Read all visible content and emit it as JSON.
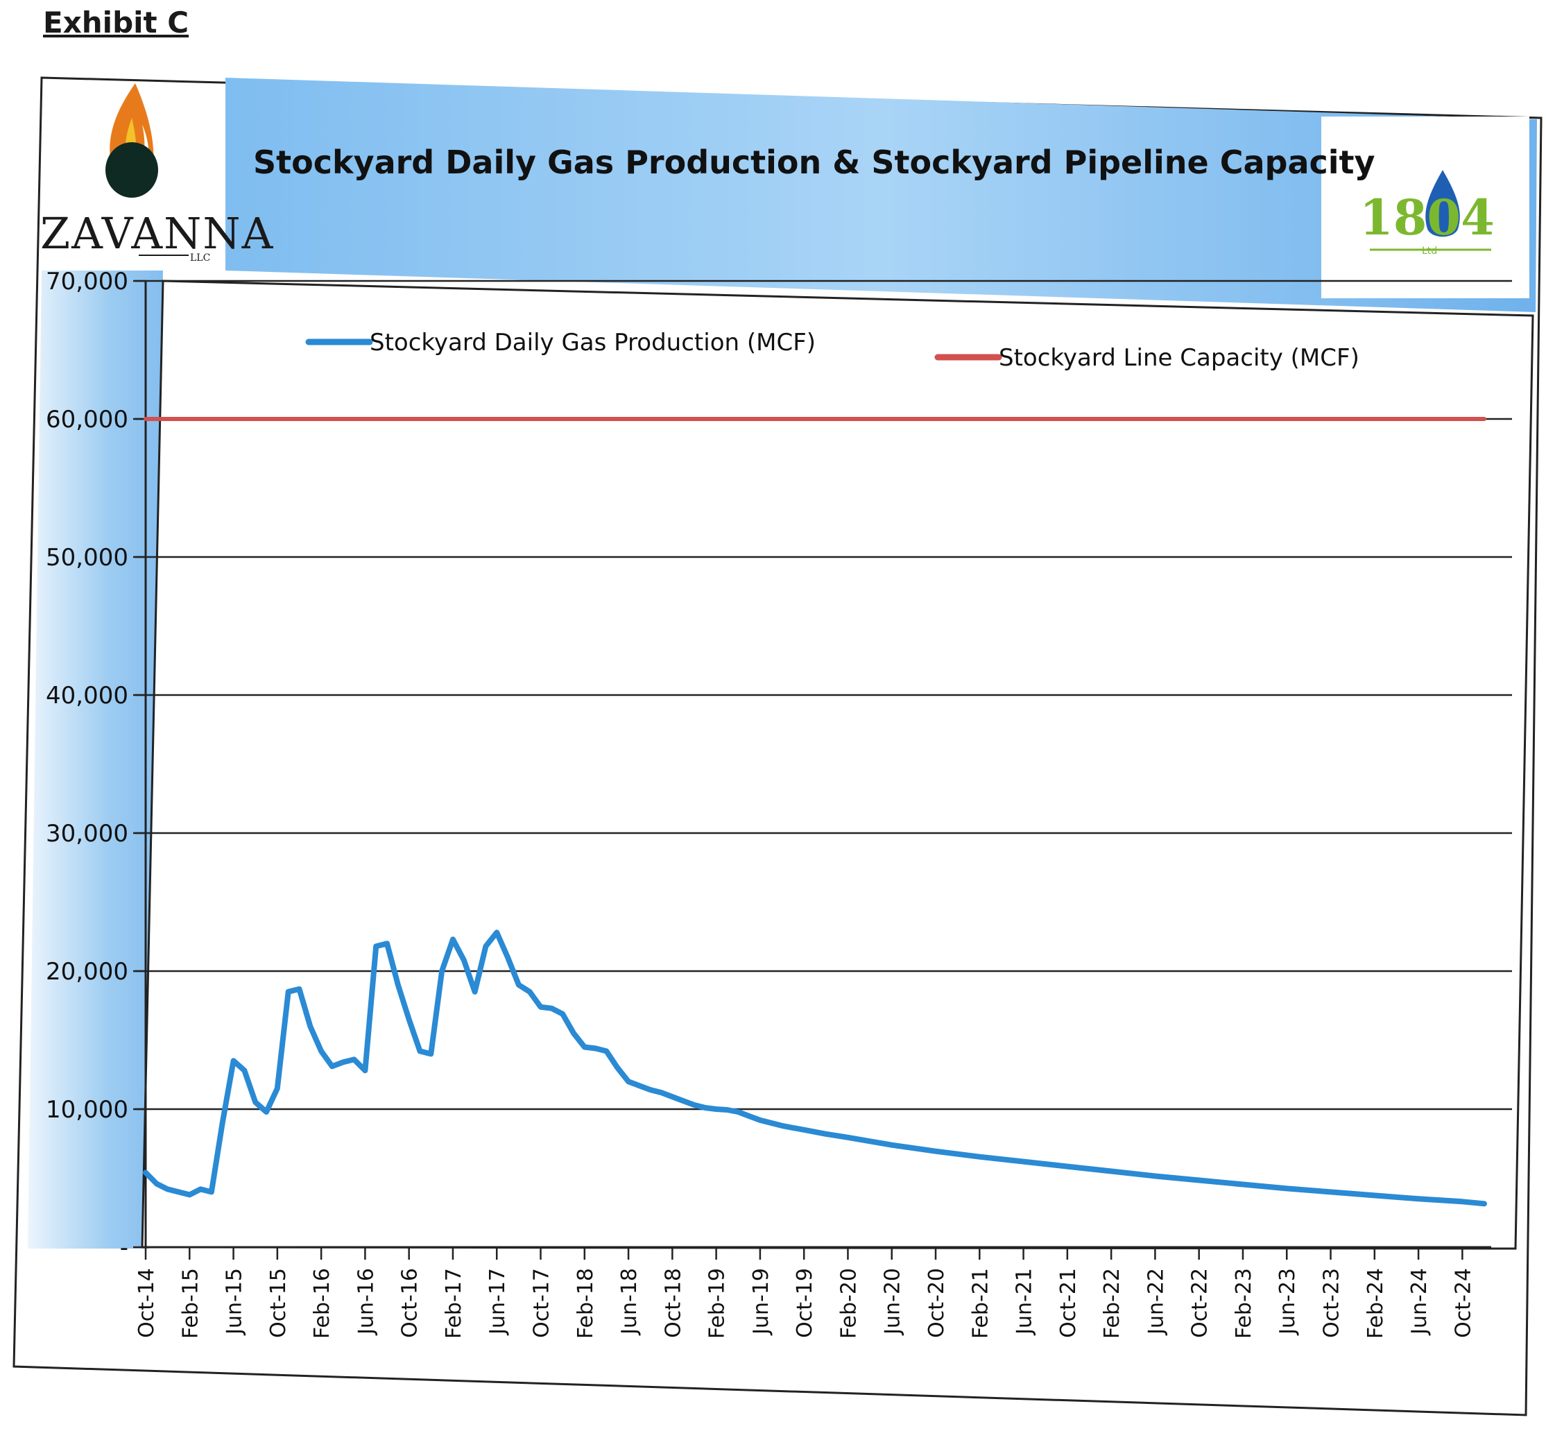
{
  "exhibit_label": "Exhibit C",
  "logos": {
    "left_name": "ZAVANNA",
    "left_suffix": "LLC",
    "right_name": "1804",
    "right_suffix": "Ltd"
  },
  "chart_data": {
    "type": "line",
    "title": "Stockyard Daily Gas Production  & Stockyard Pipeline Capacity",
    "xlabel": "",
    "ylabel": "",
    "ylim": [
      0,
      70000
    ],
    "y_ticks": [
      "-",
      "10,000",
      "20,000",
      "30,000",
      "40,000",
      "50,000",
      "60,000",
      "70,000"
    ],
    "y_tick_values": [
      0,
      10000,
      20000,
      30000,
      40000,
      50000,
      60000,
      70000
    ],
    "x_range": [
      "Oct-14",
      "Dec-24"
    ],
    "x_tick_labels": [
      "Oct-14",
      "Feb-15",
      "Jun-15",
      "Oct-15",
      "Feb-16",
      "Jun-16",
      "Oct-16",
      "Feb-17",
      "Jun-17",
      "Oct-17",
      "Feb-18",
      "Jun-18",
      "Oct-18",
      "Feb-19",
      "Jun-19",
      "Oct-19",
      "Feb-20",
      "Jun-20",
      "Oct-20",
      "Feb-21",
      "Jun-21",
      "Oct-21",
      "Feb-22",
      "Jun-22",
      "Oct-22",
      "Feb-23",
      "Jun-23",
      "Oct-23",
      "Feb-24",
      "Jun-24",
      "Oct-24"
    ],
    "grid": true,
    "legend_position": "top",
    "series": [
      {
        "name": "Stockyard Daily Gas Production (MCF)",
        "color": "#2a8ad4",
        "points": [
          [
            "Oct-14",
            5400
          ],
          [
            "Nov-14",
            4600
          ],
          [
            "Dec-14",
            4200
          ],
          [
            "Jan-15",
            4000
          ],
          [
            "Feb-15",
            3800
          ],
          [
            "Mar-15",
            4200
          ],
          [
            "Apr-15",
            4000
          ],
          [
            "May-15",
            9000
          ],
          [
            "Jun-15",
            13500
          ],
          [
            "Jul-15",
            12800
          ],
          [
            "Aug-15",
            10500
          ],
          [
            "Sep-15",
            9800
          ],
          [
            "Oct-15",
            11500
          ],
          [
            "Nov-15",
            18500
          ],
          [
            "Dec-15",
            18700
          ],
          [
            "Jan-16",
            16000
          ],
          [
            "Feb-16",
            14200
          ],
          [
            "Mar-16",
            13100
          ],
          [
            "Apr-16",
            13400
          ],
          [
            "May-16",
            13600
          ],
          [
            "Jun-16",
            12800
          ],
          [
            "Jul-16",
            21800
          ],
          [
            "Aug-16",
            22000
          ],
          [
            "Sep-16",
            19000
          ],
          [
            "Oct-16",
            16500
          ],
          [
            "Nov-16",
            14200
          ],
          [
            "Dec-16",
            14000
          ],
          [
            "Jan-17",
            20000
          ],
          [
            "Feb-17",
            22300
          ],
          [
            "Mar-17",
            20800
          ],
          [
            "Apr-17",
            18500
          ],
          [
            "May-17",
            21800
          ],
          [
            "Jun-17",
            22800
          ],
          [
            "Jul-17",
            21000
          ],
          [
            "Aug-17",
            19000
          ],
          [
            "Sep-17",
            18500
          ],
          [
            "Oct-17",
            17400
          ],
          [
            "Nov-17",
            17300
          ],
          [
            "Dec-17",
            16900
          ],
          [
            "Jan-18",
            15500
          ],
          [
            "Feb-18",
            14500
          ],
          [
            "Mar-18",
            14400
          ],
          [
            "Apr-18",
            14200
          ],
          [
            "May-18",
            13000
          ],
          [
            "Jun-18",
            12000
          ],
          [
            "Jul-18",
            11700
          ],
          [
            "Aug-18",
            11400
          ],
          [
            "Sep-18",
            11200
          ],
          [
            "Oct-18",
            10900
          ],
          [
            "Nov-18",
            10600
          ],
          [
            "Dec-18",
            10300
          ],
          [
            "Jan-19",
            10100
          ],
          [
            "Feb-19",
            10000
          ],
          [
            "Mar-19",
            9950
          ],
          [
            "Apr-19",
            9800
          ],
          [
            "May-19",
            9500
          ],
          [
            "Jun-19",
            9200
          ],
          [
            "Jul-19",
            9000
          ],
          [
            "Aug-19",
            8800
          ],
          [
            "Sep-19",
            8650
          ],
          [
            "Oct-19",
            8500
          ],
          [
            "Dec-19",
            8200
          ],
          [
            "Feb-20",
            7950
          ],
          [
            "Jun-20",
            7400
          ],
          [
            "Oct-20",
            6950
          ],
          [
            "Feb-21",
            6550
          ],
          [
            "Jun-21",
            6200
          ],
          [
            "Oct-21",
            5850
          ],
          [
            "Feb-22",
            5500
          ],
          [
            "Jun-22",
            5150
          ],
          [
            "Oct-22",
            4850
          ],
          [
            "Feb-23",
            4550
          ],
          [
            "Jun-23",
            4250
          ],
          [
            "Oct-23",
            4000
          ],
          [
            "Feb-24",
            3750
          ],
          [
            "Jun-24",
            3500
          ],
          [
            "Oct-24",
            3300
          ],
          [
            "Dec-24",
            3150
          ]
        ]
      },
      {
        "name": "Stockyard Line Capacity (MCF)",
        "color": "#d2504f",
        "points": [
          [
            "Oct-14",
            60000
          ],
          [
            "Dec-24",
            60000
          ]
        ]
      }
    ]
  }
}
